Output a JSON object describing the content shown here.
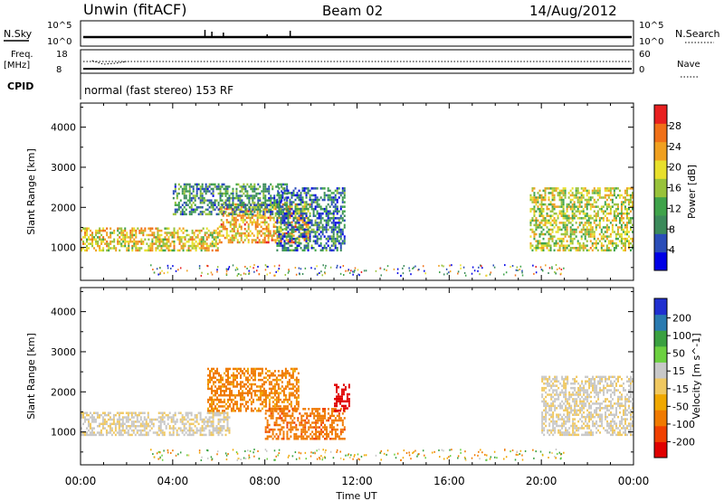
{
  "header": {
    "station": "Unwin (fitACF)",
    "beam": "Beam 02",
    "date": "14/Aug/2012"
  },
  "top_panels": {
    "nsky_label": "N.Sky",
    "nsky_ticks": [
      "10^5",
      "10^0"
    ],
    "nsearch_label": "N.Search",
    "nsearch_ticks": [
      "10^5",
      "10^0"
    ],
    "freq_label": "Freq.",
    "freq_unit": "[MHz]",
    "freq_ticks": [
      "18",
      "8"
    ],
    "nave_label": "Nave",
    "nave_ticks": [
      "60",
      "0"
    ],
    "cpid_label": "CPID",
    "cpid_text": "normal (fast stereo) 153 RF"
  },
  "colors": {
    "power_scale": [
      "#0000e6",
      "#2a4db8",
      "#3b8a5a",
      "#3fa34a",
      "#98c23a",
      "#e8e02c",
      "#f0a020",
      "#f07018",
      "#e82020"
    ],
    "velocity_scale": [
      "#e00000",
      "#f04000",
      "#f07a00",
      "#f0a800",
      "#f0c860",
      "#c8c8c8",
      "#6cd040",
      "#3aa040",
      "#2a7ab0",
      "#2030d0"
    ]
  },
  "chart_data": [
    {
      "type": "heatmap",
      "title": "",
      "xlabel": "Time UT",
      "ylabel": "Slant Range [km]",
      "x_ticks": [
        "00:00",
        "04:00",
        "08:00",
        "12:00",
        "16:00",
        "20:00",
        "00:00"
      ],
      "y_ticks": [
        "1000",
        "2000",
        "3000",
        "4000"
      ],
      "ylim": [
        180,
        4600
      ],
      "colorbar_label": "Power [dB]",
      "colorbar_ticks": [
        "4",
        "8",
        "12",
        "16",
        "20",
        "24",
        "28"
      ],
      "clim": [
        0,
        32
      ],
      "description_regions": [
        {
          "t_start": 0.0,
          "t_end": 6.0,
          "r_low": 900,
          "r_high": 1500,
          "power": 20
        },
        {
          "t_start": 6.0,
          "t_end": 10.0,
          "r_low": 1100,
          "r_high": 2100,
          "power": 22
        },
        {
          "t_start": 4.0,
          "t_end": 9.0,
          "r_low": 1800,
          "r_high": 2600,
          "power": 10
        },
        {
          "t_start": 8.5,
          "t_end": 11.5,
          "r_low": 900,
          "r_high": 2500,
          "power": 8
        },
        {
          "t_start": 19.5,
          "t_end": 24.0,
          "r_low": 900,
          "r_high": 2500,
          "power": 18
        }
      ]
    },
    {
      "type": "heatmap",
      "title": "",
      "xlabel": "Time UT",
      "ylabel": "Slant Range [km]",
      "x_ticks": [
        "00:00",
        "04:00",
        "08:00",
        "12:00",
        "16:00",
        "20:00",
        "00:00"
      ],
      "y_ticks": [
        "1000",
        "2000",
        "3000",
        "4000"
      ],
      "ylim": [
        180,
        4600
      ],
      "colorbar_label": "Velocity [m s^-1]",
      "colorbar_ticks": [
        "200",
        "100",
        "50",
        "15",
        "-15",
        "-50",
        "-100",
        "-200"
      ],
      "clim": [
        -250,
        250
      ],
      "description_regions": [
        {
          "t_start": 0.0,
          "t_end": 6.5,
          "r_low": 900,
          "r_high": 1500,
          "velocity": 0
        },
        {
          "t_start": 5.5,
          "t_end": 9.5,
          "r_low": 1500,
          "r_high": 2600,
          "velocity": -60
        },
        {
          "t_start": 8.0,
          "t_end": 11.5,
          "r_low": 800,
          "r_high": 1600,
          "velocity": -90
        },
        {
          "t_start": 11.0,
          "t_end": 11.7,
          "r_low": 1500,
          "r_high": 2200,
          "velocity": -220
        },
        {
          "t_start": 20.0,
          "t_end": 24.0,
          "r_low": 900,
          "r_high": 2400,
          "velocity": 0
        }
      ]
    }
  ]
}
